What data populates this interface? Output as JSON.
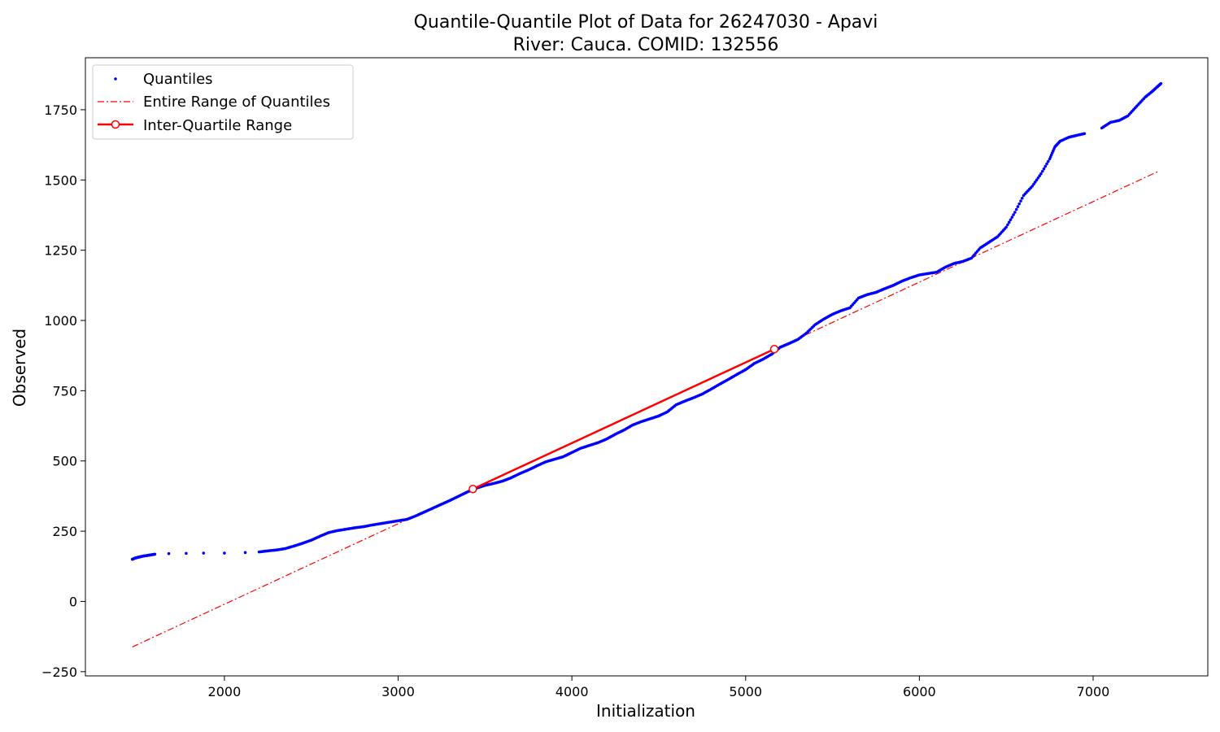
{
  "chart_data": {
    "type": "scatter",
    "title": "Quantile-Quantile Plot of Data for 26247030 - Apavi",
    "subtitle": "River: Cauca. COMID: 132556",
    "xlabel": "Initialization",
    "ylabel": "Observed",
    "xlim": [
      1200,
      7660
    ],
    "ylim": [
      -265,
      1935
    ],
    "x_ticks": [
      2000,
      3000,
      4000,
      5000,
      6000,
      7000
    ],
    "y_ticks": [
      -250,
      0,
      250,
      500,
      750,
      1000,
      1250,
      1500,
      1750
    ],
    "grid": false,
    "legend_position": "top-left",
    "colors": {
      "quantiles": "#0000ff",
      "reference": "#ff0000"
    },
    "legend": [
      {
        "label": "Quantiles",
        "style": "points"
      },
      {
        "label": "Entire Range of Quantiles",
        "style": "dash-dot"
      },
      {
        "label": "Inter-Quartile Range",
        "style": "solid-with-circles"
      }
    ],
    "series": [
      {
        "name": "Quantiles",
        "style": "points",
        "points": [
          [
            1470,
            150
          ],
          [
            1490,
            155
          ],
          [
            1510,
            158
          ],
          [
            1530,
            161
          ],
          [
            1550,
            163
          ],
          [
            1570,
            165
          ],
          [
            1600,
            168
          ],
          [
            1680,
            170
          ],
          [
            1780,
            171
          ],
          [
            1880,
            172
          ],
          [
            2000,
            172
          ],
          [
            2120,
            174
          ],
          [
            2200,
            176
          ],
          [
            2250,
            180
          ],
          [
            2300,
            183
          ],
          [
            2350,
            188
          ],
          [
            2400,
            197
          ],
          [
            2450,
            207
          ],
          [
            2500,
            218
          ],
          [
            2550,
            232
          ],
          [
            2600,
            245
          ],
          [
            2650,
            252
          ],
          [
            2700,
            257
          ],
          [
            2750,
            262
          ],
          [
            2800,
            266
          ],
          [
            2850,
            272
          ],
          [
            2900,
            277
          ],
          [
            2950,
            282
          ],
          [
            3000,
            287
          ],
          [
            3050,
            292
          ],
          [
            3100,
            304
          ],
          [
            3150,
            318
          ],
          [
            3200,
            332
          ],
          [
            3250,
            346
          ],
          [
            3300,
            360
          ],
          [
            3350,
            375
          ],
          [
            3400,
            390
          ],
          [
            3450,
            403
          ],
          [
            3500,
            413
          ],
          [
            3550,
            420
          ],
          [
            3600,
            428
          ],
          [
            3650,
            440
          ],
          [
            3700,
            455
          ],
          [
            3750,
            468
          ],
          [
            3800,
            483
          ],
          [
            3850,
            497
          ],
          [
            3900,
            506
          ],
          [
            3950,
            515
          ],
          [
            4000,
            530
          ],
          [
            4050,
            545
          ],
          [
            4100,
            555
          ],
          [
            4150,
            565
          ],
          [
            4200,
            578
          ],
          [
            4250,
            595
          ],
          [
            4300,
            610
          ],
          [
            4350,
            628
          ],
          [
            4400,
            640
          ],
          [
            4450,
            650
          ],
          [
            4500,
            660
          ],
          [
            4550,
            675
          ],
          [
            4600,
            700
          ],
          [
            4650,
            713
          ],
          [
            4700,
            725
          ],
          [
            4750,
            738
          ],
          [
            4800,
            755
          ],
          [
            4850,
            773
          ],
          [
            4900,
            790
          ],
          [
            4950,
            808
          ],
          [
            5000,
            825
          ],
          [
            5050,
            847
          ],
          [
            5100,
            862
          ],
          [
            5150,
            880
          ],
          [
            5200,
            905
          ],
          [
            5250,
            918
          ],
          [
            5300,
            932
          ],
          [
            5350,
            955
          ],
          [
            5400,
            985
          ],
          [
            5450,
            1005
          ],
          [
            5500,
            1022
          ],
          [
            5550,
            1035
          ],
          [
            5600,
            1045
          ],
          [
            5650,
            1080
          ],
          [
            5700,
            1092
          ],
          [
            5750,
            1100
          ],
          [
            5800,
            1113
          ],
          [
            5850,
            1125
          ],
          [
            5900,
            1140
          ],
          [
            5950,
            1152
          ],
          [
            6000,
            1162
          ],
          [
            6050,
            1167
          ],
          [
            6100,
            1172
          ],
          [
            6150,
            1190
          ],
          [
            6200,
            1203
          ],
          [
            6250,
            1210
          ],
          [
            6300,
            1222
          ],
          [
            6350,
            1258
          ],
          [
            6400,
            1278
          ],
          [
            6450,
            1298
          ],
          [
            6500,
            1332
          ],
          [
            6550,
            1385
          ],
          [
            6600,
            1445
          ],
          [
            6650,
            1478
          ],
          [
            6700,
            1522
          ],
          [
            6750,
            1575
          ],
          [
            6780,
            1618
          ],
          [
            6810,
            1638
          ],
          [
            6860,
            1652
          ],
          [
            6900,
            1658
          ],
          [
            6950,
            1665
          ],
          [
            7050,
            1685
          ],
          [
            7100,
            1705
          ],
          [
            7150,
            1712
          ],
          [
            7200,
            1728
          ],
          [
            7250,
            1762
          ],
          [
            7300,
            1795
          ],
          [
            7340,
            1815
          ],
          [
            7370,
            1832
          ],
          [
            7390,
            1843
          ]
        ]
      },
      {
        "name": "Entire Range of Quantiles",
        "style": "dash-dot",
        "points": [
          [
            1470,
            -162
          ],
          [
            7380,
            1532
          ]
        ]
      },
      {
        "name": "Inter-Quartile Range",
        "style": "solid-with-circles",
        "points": [
          [
            3430,
            400
          ],
          [
            5165,
            898
          ]
        ]
      }
    ]
  }
}
